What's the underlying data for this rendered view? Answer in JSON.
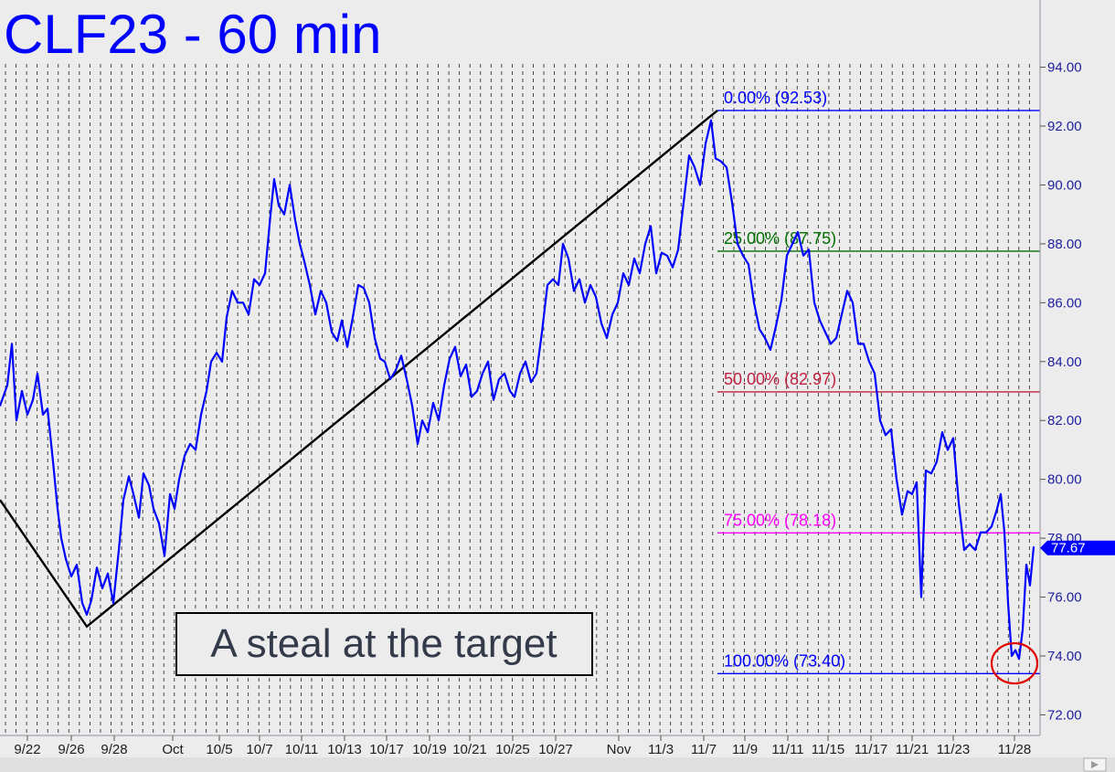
{
  "chart_data": {
    "type": "line",
    "title": "CLF23 - 60 min",
    "annotation": "A steal at the target",
    "y_range": [
      71.3,
      95.6
    ],
    "x_range": [
      0,
      1128
    ],
    "y_ticks": [
      "94.00",
      "92.00",
      "90.00",
      "88.00",
      "86.00",
      "84.00",
      "82.00",
      "80.00",
      "78.00",
      "76.00",
      "74.00",
      "72.00"
    ],
    "x_ticks": [
      {
        "label": "9/22",
        "x": 30
      },
      {
        "label": "9/26",
        "x": 78
      },
      {
        "label": "9/28",
        "x": 125
      },
      {
        "label": "Oct",
        "x": 189
      },
      {
        "label": "10/5",
        "x": 240
      },
      {
        "label": "10/7",
        "x": 284
      },
      {
        "label": "10/11",
        "x": 330
      },
      {
        "label": "10/13",
        "x": 377
      },
      {
        "label": "10/17",
        "x": 423
      },
      {
        "label": "10/19",
        "x": 470
      },
      {
        "label": "10/21",
        "x": 514
      },
      {
        "label": "10/25",
        "x": 561
      },
      {
        "label": "10/27",
        "x": 608
      },
      {
        "label": "Nov",
        "x": 677
      },
      {
        "label": "11/3",
        "x": 723
      },
      {
        "label": "11/7",
        "x": 770
      },
      {
        "label": "11/9",
        "x": 815
      },
      {
        "label": "11/11",
        "x": 862
      },
      {
        "label": "11/15",
        "x": 906
      },
      {
        "label": "11/17",
        "x": 953
      },
      {
        "label": "11/21",
        "x": 998
      },
      {
        "label": "11/23",
        "x": 1043
      },
      {
        "label": "11/28",
        "x": 1110
      }
    ],
    "fib_levels": [
      {
        "label": "0.00% (92.53)",
        "value": 92.53,
        "color": "#0000ff"
      },
      {
        "label": "25.00% (87.75)",
        "value": 87.75,
        "color": "#007000"
      },
      {
        "label": "50.00% (82.97)",
        "value": 82.97,
        "color": "#c02040"
      },
      {
        "label": "75.00% (78.18)",
        "value": 78.18,
        "color": "#ff00ff"
      },
      {
        "label": "100.00% (73.40)",
        "value": 73.4,
        "color": "#0000ff"
      }
    ],
    "fib_x_start": 785,
    "last_price": "77.67",
    "last_value": 77.67,
    "trendlines": [
      {
        "points": [
          [
            0,
            79.3
          ],
          [
            95,
            75.0
          ],
          [
            785,
            92.53
          ]
        ],
        "color": "#000000"
      }
    ],
    "target_circle": {
      "x": 1110,
      "y": 73.75
    },
    "price_series": {
      "name": "CLF23",
      "color": "#0000ff",
      "points": [
        [
          0,
          82.5
        ],
        [
          8,
          83.2
        ],
        [
          13,
          84.6
        ],
        [
          18,
          82.0
        ],
        [
          24,
          83.0
        ],
        [
          30,
          82.2
        ],
        [
          36,
          82.7
        ],
        [
          41,
          83.6
        ],
        [
          47,
          82.2
        ],
        [
          52,
          82.4
        ],
        [
          58,
          80.6
        ],
        [
          63,
          79.0
        ],
        [
          67,
          78.0
        ],
        [
          72,
          77.3
        ],
        [
          78,
          76.7
        ],
        [
          84,
          77.1
        ],
        [
          90,
          75.8
        ],
        [
          95,
          75.4
        ],
        [
          100,
          75.9
        ],
        [
          106,
          77.0
        ],
        [
          112,
          76.3
        ],
        [
          118,
          76.8
        ],
        [
          124,
          75.8
        ],
        [
          130,
          77.6
        ],
        [
          135,
          79.3
        ],
        [
          141,
          80.1
        ],
        [
          146,
          79.5
        ],
        [
          152,
          78.7
        ],
        [
          157,
          80.2
        ],
        [
          163,
          79.8
        ],
        [
          168,
          79.0
        ],
        [
          174,
          78.5
        ],
        [
          180,
          77.4
        ],
        [
          186,
          79.5
        ],
        [
          191,
          79.0
        ],
        [
          196,
          80.0
        ],
        [
          202,
          80.8
        ],
        [
          208,
          81.2
        ],
        [
          214,
          81.0
        ],
        [
          220,
          82.2
        ],
        [
          226,
          83.0
        ],
        [
          231,
          84.0
        ],
        [
          237,
          84.3
        ],
        [
          243,
          84.0
        ],
        [
          248,
          85.5
        ],
        [
          254,
          86.4
        ],
        [
          260,
          86.0
        ],
        [
          266,
          86.0
        ],
        [
          272,
          85.6
        ],
        [
          278,
          86.8
        ],
        [
          284,
          86.6
        ],
        [
          290,
          87.0
        ],
        [
          296,
          89.0
        ],
        [
          300,
          90.2
        ],
        [
          305,
          89.3
        ],
        [
          311,
          89.0
        ],
        [
          317,
          90.0
        ],
        [
          323,
          88.8
        ],
        [
          328,
          88.0
        ],
        [
          333,
          87.4
        ],
        [
          339,
          86.6
        ],
        [
          345,
          85.6
        ],
        [
          351,
          86.4
        ],
        [
          357,
          86.0
        ],
        [
          363,
          85.0
        ],
        [
          369,
          84.7
        ],
        [
          374,
          85.4
        ],
        [
          380,
          84.5
        ],
        [
          386,
          85.5
        ],
        [
          392,
          86.6
        ],
        [
          398,
          86.5
        ],
        [
          404,
          86.0
        ],
        [
          410,
          84.8
        ],
        [
          416,
          84.1
        ],
        [
          421,
          84.0
        ],
        [
          427,
          83.4
        ],
        [
          433,
          83.7
        ],
        [
          439,
          84.2
        ],
        [
          445,
          83.4
        ],
        [
          451,
          82.5
        ],
        [
          457,
          81.2
        ],
        [
          462,
          82.0
        ],
        [
          468,
          81.6
        ],
        [
          474,
          82.6
        ],
        [
          480,
          82.0
        ],
        [
          486,
          83.2
        ],
        [
          492,
          84.1
        ],
        [
          498,
          84.5
        ],
        [
          504,
          83.5
        ],
        [
          510,
          83.9
        ],
        [
          516,
          82.8
        ],
        [
          522,
          83.0
        ],
        [
          528,
          83.6
        ],
        [
          534,
          84.0
        ],
        [
          540,
          82.7
        ],
        [
          546,
          83.4
        ],
        [
          552,
          83.6
        ],
        [
          558,
          83.0
        ],
        [
          563,
          82.8
        ],
        [
          569,
          83.6
        ],
        [
          575,
          84.0
        ],
        [
          581,
          83.3
        ],
        [
          587,
          83.6
        ],
        [
          593,
          85.0
        ],
        [
          599,
          86.6
        ],
        [
          605,
          86.8
        ],
        [
          611,
          86.6
        ],
        [
          616,
          88.0
        ],
        [
          622,
          87.5
        ],
        [
          628,
          86.4
        ],
        [
          634,
          86.8
        ],
        [
          640,
          86.0
        ],
        [
          646,
          86.6
        ],
        [
          652,
          86.2
        ],
        [
          658,
          85.3
        ],
        [
          664,
          84.8
        ],
        [
          670,
          85.6
        ],
        [
          676,
          86.0
        ],
        [
          682,
          87.0
        ],
        [
          688,
          86.6
        ],
        [
          694,
          87.5
        ],
        [
          700,
          87.0
        ],
        [
          706,
          88.0
        ],
        [
          712,
          88.6
        ],
        [
          718,
          87.0
        ],
        [
          724,
          87.7
        ],
        [
          730,
          87.6
        ],
        [
          736,
          87.2
        ],
        [
          742,
          87.8
        ],
        [
          748,
          89.4
        ],
        [
          754,
          91.0
        ],
        [
          760,
          90.6
        ],
        [
          766,
          90.0
        ],
        [
          772,
          91.4
        ],
        [
          778,
          92.2
        ],
        [
          783,
          90.9
        ],
        [
          789,
          90.8
        ],
        [
          795,
          90.6
        ],
        [
          801,
          89.4
        ],
        [
          807,
          88.0
        ],
        [
          813,
          87.6
        ],
        [
          819,
          87.3
        ],
        [
          825,
          86.0
        ],
        [
          831,
          85.1
        ],
        [
          837,
          84.8
        ],
        [
          843,
          84.4
        ],
        [
          849,
          85.2
        ],
        [
          855,
          86.1
        ],
        [
          861,
          87.6
        ],
        [
          867,
          88.0
        ],
        [
          873,
          88.4
        ],
        [
          879,
          87.6
        ],
        [
          885,
          87.8
        ],
        [
          891,
          86.0
        ],
        [
          897,
          85.4
        ],
        [
          903,
          85.0
        ],
        [
          909,
          84.6
        ],
        [
          915,
          84.8
        ],
        [
          921,
          85.6
        ],
        [
          927,
          86.4
        ],
        [
          933,
          86.0
        ],
        [
          939,
          84.6
        ],
        [
          945,
          84.6
        ],
        [
          951,
          84.0
        ],
        [
          957,
          83.6
        ],
        [
          963,
          82.0
        ],
        [
          969,
          81.5
        ],
        [
          975,
          81.7
        ],
        [
          981,
          80.0
        ],
        [
          987,
          78.8
        ],
        [
          993,
          79.6
        ],
        [
          998,
          79.5
        ],
        [
          1003,
          79.9
        ],
        [
          1008,
          76.0
        ],
        [
          1013,
          80.3
        ],
        [
          1019,
          80.2
        ],
        [
          1025,
          80.6
        ],
        [
          1031,
          81.6
        ],
        [
          1037,
          81.0
        ],
        [
          1043,
          81.4
        ],
        [
          1049,
          79.2
        ],
        [
          1055,
          77.6
        ],
        [
          1061,
          77.8
        ],
        [
          1067,
          77.6
        ],
        [
          1073,
          78.2
        ],
        [
          1079,
          78.2
        ],
        [
          1085,
          78.4
        ],
        [
          1091,
          79.0
        ],
        [
          1095,
          79.5
        ],
        [
          1099,
          78.2
        ],
        [
          1103,
          75.8
        ],
        [
          1107,
          74.0
        ],
        [
          1111,
          74.2
        ],
        [
          1115,
          73.9
        ],
        [
          1119,
          74.9
        ],
        [
          1123,
          77.1
        ],
        [
          1127,
          76.4
        ],
        [
          1131,
          77.7
        ]
      ]
    }
  }
}
